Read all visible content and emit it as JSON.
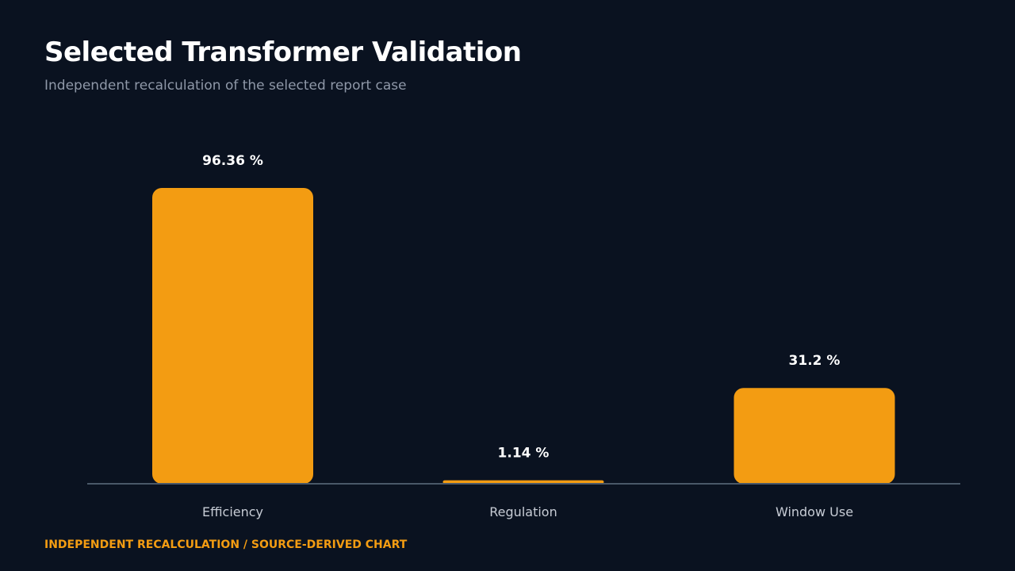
{
  "title": "Selected Transformer Validation",
  "subtitle": "Independent recalculation of the selected report case",
  "footer": "INDEPENDENT RECALCULATION / SOURCE-DERIVED CHART",
  "colors": {
    "background": "#0a1220",
    "bar": "#f39c12",
    "axis": "#4a5868"
  },
  "chart_data": {
    "type": "bar",
    "categories": [
      "Efficiency",
      "Regulation",
      "Window Use"
    ],
    "values": [
      96.36,
      1.14,
      31.2
    ],
    "value_labels": [
      "96.36 %",
      "1.14 %",
      "31.2 %"
    ],
    "ylim": [
      0,
      100
    ],
    "grid": false,
    "legend": "none"
  }
}
